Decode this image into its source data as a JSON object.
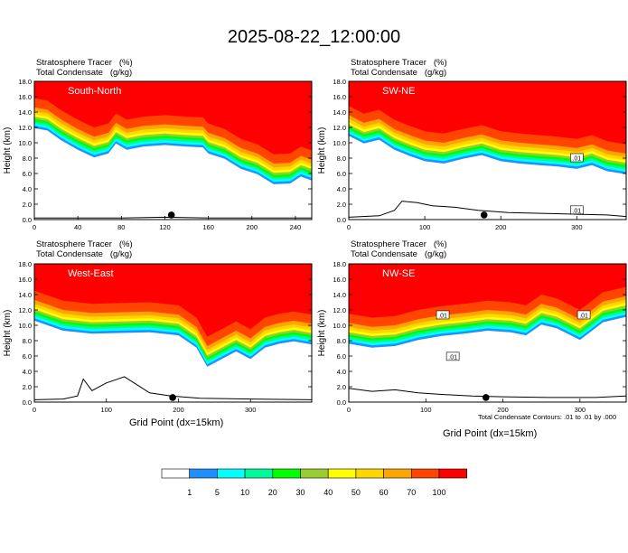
{
  "title": "2025-08-22_12:00:00",
  "field_labels": {
    "line1": "Stratosphere Tracer   (%)",
    "line2": "Total Condensate   (g/kg)"
  },
  "y_axis_label": "Height (km)",
  "x_axis_label": "Grid Point (dx=15km)",
  "contour_note": "Total Condensate Contours: .01 to .01 by .000",
  "legend": {
    "levels": [
      "1",
      "5",
      "10",
      "20",
      "30",
      "40",
      "50",
      "60",
      "70",
      "100"
    ],
    "colors": [
      "#ffffff",
      "#1e90ff",
      "#00ffff",
      "#00fa9a",
      "#00ff00",
      "#9acd32",
      "#ffff00",
      "#ffd700",
      "#ffa500",
      "#ff4500",
      "#ff0000"
    ]
  },
  "colors": {
    "contour": "#000000",
    "terrain": "#000000",
    "marker": "#000000"
  },
  "chart_data": [
    {
      "type": "contour",
      "label": "South-North",
      "ylabel": "Height (km)",
      "ylim": [
        0,
        18
      ],
      "yticks": [
        "0.0",
        "2.0",
        "4.0",
        "6.0",
        "8.0",
        "10.0",
        "12.0",
        "14.0",
        "16.0",
        "18.0"
      ],
      "xlim": [
        0,
        255
      ],
      "xticks": [
        {
          "v": 0,
          "t": "0"
        },
        {
          "v": 40,
          "t": "40"
        },
        {
          "v": 80,
          "t": "80"
        },
        {
          "v": 120,
          "t": "120"
        },
        {
          "v": 160,
          "t": "160"
        },
        {
          "v": 200,
          "t": "200"
        },
        {
          "v": 240,
          "t": "240"
        }
      ],
      "tropopause": [
        [
          0,
          15.8
        ],
        [
          12,
          15.5
        ],
        [
          25,
          14.2
        ],
        [
          40,
          13.0
        ],
        [
          55,
          12.0
        ],
        [
          68,
          12.5
        ],
        [
          75,
          13.8
        ],
        [
          85,
          13.0
        ],
        [
          100,
          13.4
        ],
        [
          120,
          13.6
        ],
        [
          140,
          13.4
        ],
        [
          155,
          13.3
        ],
        [
          160,
          12.5
        ],
        [
          175,
          11.8
        ],
        [
          190,
          10.5
        ],
        [
          205,
          9.8
        ],
        [
          220,
          8.5
        ],
        [
          235,
          8.6
        ],
        [
          245,
          9.5
        ],
        [
          255,
          9.0
        ]
      ],
      "terrain": [
        [
          0,
          0.2
        ],
        [
          40,
          0.2
        ],
        [
          80,
          0.2
        ],
        [
          120,
          0.3
        ],
        [
          160,
          0.2
        ],
        [
          200,
          0.2
        ],
        [
          255,
          0.2
        ]
      ],
      "marker_x": 126,
      "contour_labels": []
    },
    {
      "type": "contour",
      "label": "SW-NE",
      "ylabel": "Height (km)",
      "ylim": [
        0,
        18
      ],
      "yticks": [
        "0.0",
        "2.0",
        "4.0",
        "6.0",
        "8.0",
        "10.0",
        "12.0",
        "14.0",
        "16.0",
        "18.0"
      ],
      "xlim": [
        0,
        365
      ],
      "xticks": [
        {
          "v": 0,
          "t": "0"
        },
        {
          "v": 100,
          "t": "100"
        },
        {
          "v": 200,
          "t": "200"
        },
        {
          "v": 300,
          "t": "300"
        }
      ],
      "tropopause": [
        [
          0,
          14.8
        ],
        [
          20,
          13.8
        ],
        [
          40,
          14.3
        ],
        [
          60,
          13.0
        ],
        [
          80,
          12.2
        ],
        [
          100,
          11.5
        ],
        [
          125,
          11.2
        ],
        [
          150,
          11.8
        ],
        [
          175,
          12.3
        ],
        [
          200,
          11.5
        ],
        [
          225,
          11.2
        ],
        [
          250,
          11.0
        ],
        [
          275,
          10.8
        ],
        [
          300,
          10.5
        ],
        [
          320,
          11.0
        ],
        [
          340,
          10.2
        ],
        [
          365,
          9.8
        ]
      ],
      "terrain": [
        [
          0,
          0.3
        ],
        [
          40,
          0.5
        ],
        [
          60,
          1.2
        ],
        [
          70,
          2.4
        ],
        [
          90,
          2.2
        ],
        [
          110,
          1.8
        ],
        [
          140,
          1.6
        ],
        [
          170,
          1.2
        ],
        [
          210,
          0.9
        ],
        [
          260,
          0.8
        ],
        [
          300,
          0.7
        ],
        [
          340,
          0.6
        ],
        [
          365,
          0.4
        ]
      ],
      "marker_x": 178,
      "contour_labels": [
        {
          "x": 300,
          "y": 8.0,
          "t": ".01"
        },
        {
          "x": 300,
          "y": 1.2,
          "t": ".01"
        }
      ]
    },
    {
      "type": "contour",
      "label": "West-East",
      "ylabel": "Height (km)",
      "ylim": [
        0,
        18
      ],
      "yticks": [
        "0.0",
        "2.0",
        "4.0",
        "6.0",
        "8.0",
        "10.0",
        "12.0",
        "14.0",
        "16.0",
        "18.0"
      ],
      "xlim": [
        0,
        385
      ],
      "xticks": [
        {
          "v": 0,
          "t": "0"
        },
        {
          "v": 100,
          "t": "100"
        },
        {
          "v": 200,
          "t": "200"
        },
        {
          "v": 300,
          "t": "300"
        }
      ],
      "tropopause": [
        [
          0,
          14.5
        ],
        [
          40,
          13.2
        ],
        [
          80,
          12.8
        ],
        [
          120,
          12.9
        ],
        [
          160,
          13.0
        ],
        [
          200,
          12.6
        ],
        [
          225,
          11.0
        ],
        [
          240,
          8.5
        ],
        [
          260,
          9.5
        ],
        [
          280,
          10.5
        ],
        [
          300,
          9.5
        ],
        [
          320,
          11.0
        ],
        [
          340,
          11.5
        ],
        [
          360,
          11.8
        ],
        [
          385,
          11.4
        ]
      ],
      "terrain": [
        [
          0,
          0.3
        ],
        [
          40,
          0.4
        ],
        [
          60,
          0.8
        ],
        [
          68,
          3.0
        ],
        [
          80,
          1.5
        ],
        [
          100,
          2.5
        ],
        [
          125,
          3.3
        ],
        [
          140,
          2.4
        ],
        [
          160,
          1.2
        ],
        [
          190,
          0.8
        ],
        [
          230,
          0.5
        ],
        [
          300,
          0.4
        ],
        [
          385,
          0.3
        ]
      ],
      "marker_x": 192,
      "contour_labels": []
    },
    {
      "type": "contour",
      "label": "NW-SE",
      "ylabel": "Height (km)",
      "ylim": [
        0,
        18
      ],
      "yticks": [
        "0.0",
        "2.0",
        "4.0",
        "6.0",
        "8.0",
        "10.0",
        "12.0",
        "14.0",
        "16.0",
        "18.0"
      ],
      "xlim": [
        0,
        360
      ],
      "xticks": [
        {
          "v": 0,
          "t": "0"
        },
        {
          "v": 100,
          "t": "100"
        },
        {
          "v": 200,
          "t": "200"
        },
        {
          "v": 300,
          "t": "300"
        }
      ],
      "tropopause": [
        [
          0,
          11.5
        ],
        [
          30,
          11.0
        ],
        [
          60,
          11.2
        ],
        [
          90,
          12.0
        ],
        [
          120,
          12.5
        ],
        [
          150,
          12.8
        ],
        [
          180,
          13.2
        ],
        [
          210,
          13.0
        ],
        [
          230,
          12.6
        ],
        [
          250,
          14.0
        ],
        [
          270,
          13.5
        ],
        [
          300,
          12.0
        ],
        [
          330,
          14.3
        ],
        [
          360,
          15.0
        ]
      ],
      "terrain": [
        [
          0,
          1.8
        ],
        [
          30,
          1.4
        ],
        [
          60,
          1.6
        ],
        [
          90,
          1.2
        ],
        [
          120,
          1.0
        ],
        [
          160,
          0.8
        ],
        [
          200,
          0.7
        ],
        [
          260,
          0.6
        ],
        [
          320,
          0.6
        ],
        [
          360,
          0.8
        ]
      ],
      "marker_x": 178,
      "contour_labels": [
        {
          "x": 122,
          "y": 11.3,
          "t": ".01"
        },
        {
          "x": 305,
          "y": 11.3,
          "t": ".01"
        },
        {
          "x": 135,
          "y": 5.9,
          "t": ".01"
        }
      ]
    }
  ]
}
